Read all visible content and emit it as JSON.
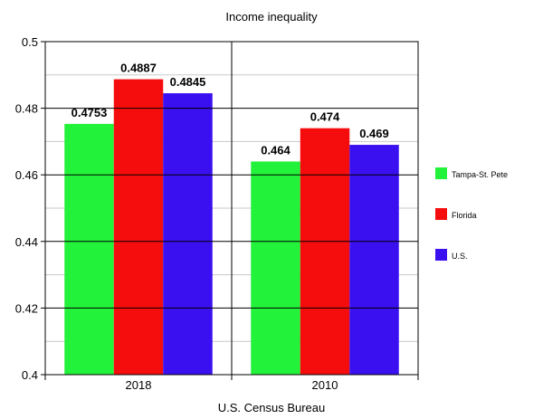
{
  "chart_data": {
    "type": "bar",
    "title": "Income inequality",
    "xlabel": "U.S. Census Bureau",
    "ylabel": "",
    "categories": [
      "2018",
      "2010"
    ],
    "ylim": [
      0.4,
      0.5
    ],
    "yticks": [
      "0.4",
      "0.42",
      "0.44",
      "0.46",
      "0.48",
      "0.5"
    ],
    "grid": true,
    "legend_position": "right",
    "series": [
      {
        "name": "Tampa-St. Pete",
        "color": "#22f23a",
        "values": [
          0.4753,
          0.464
        ],
        "labels": [
          "0.4753",
          "0.464"
        ]
      },
      {
        "name": "Florida",
        "color": "#f50d0d",
        "values": [
          0.4887,
          0.474
        ],
        "labels": [
          "0.4887",
          "0.474"
        ]
      },
      {
        "name": "U.S.",
        "color": "#3a10f0",
        "values": [
          0.4845,
          0.469
        ],
        "labels": [
          "0.4845",
          "0.469"
        ]
      }
    ]
  }
}
